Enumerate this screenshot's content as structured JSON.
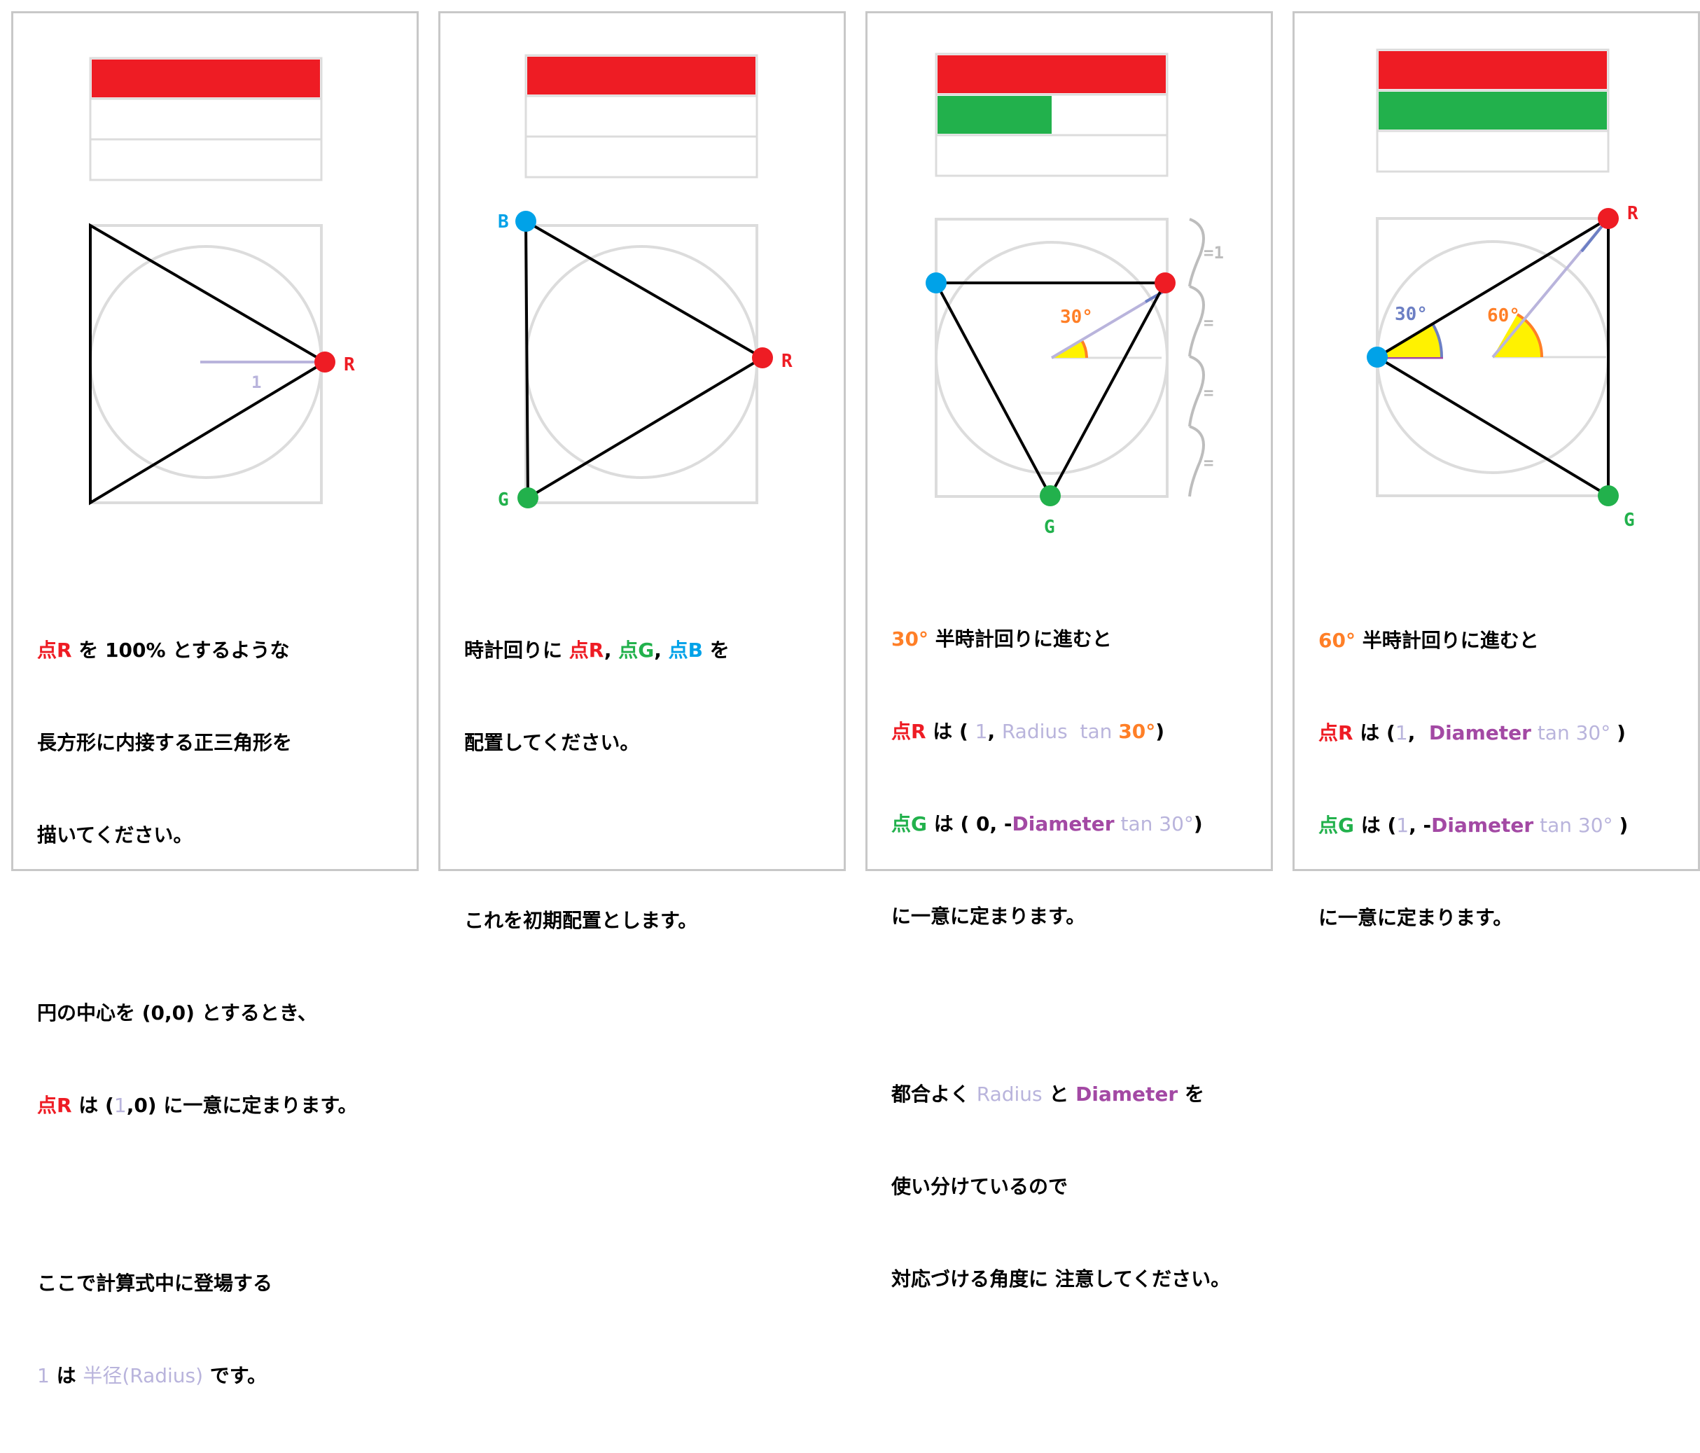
{
  "colors": {
    "red": "#ee1c24",
    "green": "#22b14c",
    "blue": "#00a2e8",
    "orange": "#ff7f27",
    "lavender": "#b9b4dc",
    "purple": "#a349a4",
    "yellow": "#fff200",
    "gray": "#dcdcdc"
  },
  "panels": [
    {
      "bars": {
        "red_fraction": 1.0,
        "green_fraction": 0.0
      },
      "labels": {
        "r": "R",
        "one": "1"
      },
      "text": {
        "l1a": "点R",
        "l1b": " を 100% とするような",
        "l2": "長方形に内接する正三角形を",
        "l3": "描いてください。",
        "l4": "円の中心を (0,0) とするとき、",
        "l5a": "点R",
        "l5b": " は (",
        "l5c": "1",
        "l5d": ",0) に一意に定まります。",
        "l6": "ここで計算式中に登場する",
        "l7a": "1",
        "l7b": " は ",
        "l7c": "半径(Radius)",
        "l7d": " です。"
      }
    },
    {
      "bars": {
        "red_fraction": 1.0,
        "green_fraction": 0.0
      },
      "labels": {
        "r": "R",
        "g": "G",
        "b": "B"
      },
      "text": {
        "l1a": "時計回りに ",
        "l1b": "点R",
        "l1c": ", ",
        "l1d": "点G",
        "l1e": ", ",
        "l1f": "点B",
        "l1g": " を",
        "l2": "配置してください。",
        "l3": "これを初期配置とします。"
      }
    },
    {
      "bars": {
        "red_fraction": 1.0,
        "green_fraction": 0.5
      },
      "labels": {
        "g": "G",
        "angle": "30°",
        "eq1": "=1",
        "eq": "="
      },
      "text": {
        "l1a": "30°",
        "l1b": " 半時計回りに進むと",
        "l2a": "点R",
        "l2b": " は ( ",
        "l2c": "1",
        "l2d": ", ",
        "l2e": "Radius",
        "l2f": "  tan ",
        "l2g": "30°",
        "l2h": ")",
        "l3a": "点G",
        "l3b": " は ( 0, -",
        "l3c": "Diameter",
        "l3d": " tan 30°",
        "l3e": ")",
        "l4": "に一意に定まります。",
        "l5a": "都合よく ",
        "l5b": "Radius",
        "l5c": " と ",
        "l5d": "Diameter",
        "l5e": " を",
        "l6": "使い分けているので",
        "l7": "対応づける角度に 注意してください。"
      }
    },
    {
      "bars": {
        "red_fraction": 1.0,
        "green_fraction": 1.0
      },
      "labels": {
        "r": "R",
        "g": "G",
        "angle30": "30°",
        "angle60": "60°"
      },
      "text": {
        "l1a": "60°",
        "l1b": " 半時計回りに進むと",
        "l2a": "点R",
        "l2b": " は (",
        "l2c": "1",
        "l2d": ",  ",
        "l2e": "Diameter",
        "l2f": " tan 30° ",
        "l2g": ")",
        "l3a": "点G",
        "l3b": " は (",
        "l3c": "1",
        "l3d": ", -",
        "l3e": "Diameter",
        "l3f": " tan 30° ",
        "l3g": ")",
        "l4": "に一意に定まります。"
      }
    }
  ]
}
